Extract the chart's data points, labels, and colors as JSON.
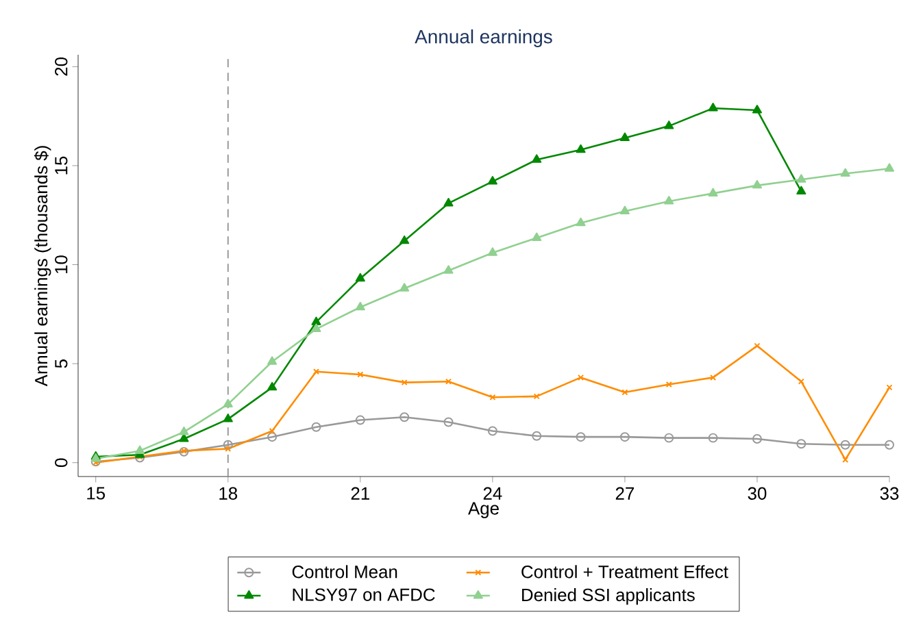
{
  "chart_data": {
    "type": "line",
    "title": "Annual earnings",
    "xlabel": "Age",
    "ylabel": "Annual earnings (thousands $)",
    "x": [
      15,
      16,
      17,
      18,
      19,
      20,
      21,
      22,
      23,
      24,
      25,
      26,
      27,
      28,
      29,
      30,
      31,
      32,
      33
    ],
    "xlim": [
      14.6,
      33
    ],
    "ylim": [
      -0.7,
      20.6
    ],
    "xticks": [
      15,
      18,
      21,
      24,
      27,
      30,
      33
    ],
    "yticks": [
      0,
      5,
      10,
      15,
      20
    ],
    "grid": false,
    "legend": "bottom",
    "ref_lines": [
      {
        "axis": "x",
        "value": 18,
        "color": "#999999",
        "line_style": "dashed"
      }
    ],
    "series": [
      {
        "name": "Control Mean",
        "color": "#999999",
        "marker": "circle",
        "values": [
          0.05,
          0.25,
          0.55,
          0.9,
          1.3,
          1.8,
          2.15,
          2.3,
          2.05,
          1.6,
          1.35,
          1.3,
          1.3,
          1.25,
          1.25,
          1.2,
          0.95,
          0.9,
          0.9
        ]
      },
      {
        "name": "Control + Treatment Effect",
        "color": "#ff8c00",
        "marker": "cross",
        "values": [
          0.0,
          0.3,
          0.6,
          0.7,
          1.6,
          4.6,
          4.45,
          4.05,
          4.1,
          3.3,
          3.35,
          4.3,
          3.55,
          3.95,
          4.3,
          5.9,
          4.1,
          0.15,
          3.8
        ]
      },
      {
        "name": "NLSY97 on AFDC",
        "color": "#008800",
        "marker": "triangle",
        "values": [
          0.3,
          0.4,
          1.2,
          2.2,
          3.8,
          7.1,
          9.3,
          11.2,
          13.1,
          14.2,
          15.3,
          15.8,
          16.4,
          17.0,
          17.9,
          17.8,
          13.7,
          null,
          null
        ]
      },
      {
        "name": "Denied SSI applicants",
        "color": "#90d090",
        "marker": "triangle",
        "values": [
          0.2,
          0.6,
          1.55,
          2.95,
          5.1,
          6.75,
          7.85,
          8.8,
          9.7,
          10.6,
          11.35,
          12.1,
          12.7,
          13.2,
          13.6,
          14.0,
          14.3,
          14.6,
          14.85
        ]
      }
    ]
  }
}
